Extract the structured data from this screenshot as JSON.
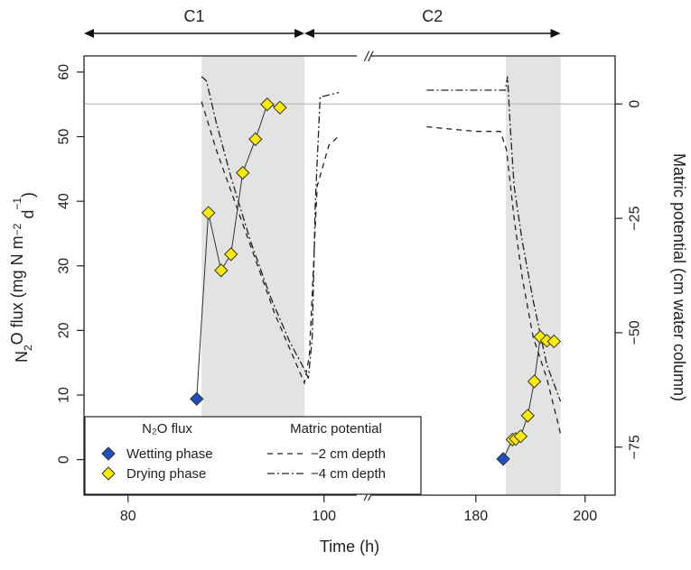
{
  "chart_data": {
    "type": "scatter",
    "xlabel": "Time (h)",
    "ylabel_left_parts": [
      "N",
      "2",
      "O flux (mg N m",
      "−2",
      " d",
      "−1",
      ")"
    ],
    "ylabel_right": "Matric potential (cm water column)",
    "x_break_marker": "//",
    "x_segments": [
      {
        "xlim": [
          75.5,
          101.5
        ],
        "ticks": [
          80,
          100
        ]
      },
      {
        "xlim": [
          161.5,
          205.5
        ],
        "ticks": [
          180,
          200
        ]
      }
    ],
    "x_tick_labels": [
      "80",
      "100",
      "180",
      "200"
    ],
    "y_left": {
      "ylim": [
        -5.5,
        62.5
      ],
      "ticks": [
        0,
        10,
        20,
        30,
        40,
        50,
        60
      ],
      "tick_labels": [
        "0",
        "10",
        "20",
        "30",
        "40",
        "50",
        "60"
      ]
    },
    "y_right": {
      "ylim": [
        -85.5,
        10.5
      ],
      "ticks": [
        0,
        -25,
        -50,
        -75
      ],
      "tick_labels": [
        "0",
        "−25",
        "−50",
        "−75"
      ]
    },
    "reference_line_right": 0,
    "cycles": [
      {
        "label": "C1",
        "x_start": 87.5,
        "x_end": 98
      },
      {
        "label": "C2",
        "x_start": 98,
        "x_end": 195.5
      }
    ],
    "shaded_regions": [
      [
        87.5,
        98
      ],
      [
        185.5,
        195.5
      ]
    ],
    "flux_series": [
      {
        "name": "Wetting phase",
        "color": "#1f4fbf",
        "marker": "diamond",
        "points": [
          [
            87,
            9.4
          ],
          [
            185,
            0.1
          ]
        ]
      },
      {
        "name": "Drying phase",
        "color": "#ffeb00",
        "marker": "diamond",
        "points": [
          [
            88.2,
            38.2
          ],
          [
            89.5,
            29.3
          ],
          [
            90.5,
            31.8
          ],
          [
            91.7,
            44.4
          ],
          [
            93,
            49.6
          ],
          [
            94.2,
            55
          ],
          [
            95.5,
            54.5
          ],
          [
            186.7,
            3.1
          ],
          [
            187.3,
            3.2
          ],
          [
            188.2,
            3.6
          ],
          [
            189.5,
            6.8
          ],
          [
            190.7,
            12.1
          ],
          [
            191.8,
            19
          ],
          [
            193,
            18.4
          ],
          [
            194.3,
            18.3
          ]
        ]
      }
    ],
    "matric_series": [
      {
        "name": "−2 cm depth",
        "dash": "dashed",
        "segment1": [
          [
            87.5,
            0.5
          ],
          [
            88,
            -3
          ],
          [
            89,
            -10
          ],
          [
            91,
            -22
          ],
          [
            93,
            -34
          ],
          [
            95,
            -46
          ],
          [
            97,
            -56
          ],
          [
            98,
            -61
          ],
          [
            98.5,
            -55
          ],
          [
            99.3,
            -18
          ],
          [
            100.5,
            -9
          ],
          [
            101.5,
            -7
          ]
        ],
        "segment2": [
          [
            171,
            -5
          ],
          [
            180,
            -6
          ],
          [
            184.5,
            -6
          ],
          [
            185.6,
            -10
          ],
          [
            187,
            -25
          ],
          [
            188.5,
            -38
          ],
          [
            190.5,
            -51
          ],
          [
            193,
            -60
          ],
          [
            195.5,
            -72
          ]
        ]
      },
      {
        "name": "−4 cm depth",
        "dash": "dashdot",
        "segment1": [
          [
            87.5,
            6
          ],
          [
            88,
            5
          ],
          [
            89,
            -4
          ],
          [
            90.5,
            -16
          ],
          [
            92.5,
            -30
          ],
          [
            94.5,
            -42
          ],
          [
            96.5,
            -52
          ],
          [
            98,
            -58
          ],
          [
            98.4,
            -60
          ],
          [
            98.8,
            -51
          ],
          [
            99.1,
            -22
          ],
          [
            99.6,
            1.5
          ],
          [
            101.5,
            2.5
          ]
        ],
        "segment2": [
          [
            171,
            3
          ],
          [
            178,
            3
          ],
          [
            185.4,
            3
          ],
          [
            185.8,
            6
          ],
          [
            186.3,
            -5
          ],
          [
            187,
            -18
          ],
          [
            188.5,
            -30
          ],
          [
            190.5,
            -43
          ],
          [
            193,
            -57
          ],
          [
            195.5,
            -65
          ]
        ]
      }
    ],
    "legend": {
      "placement": "bottom-left",
      "flux_title": "N₂O flux",
      "matric_title": "Matric potential",
      "flux_entries": [
        "Wetting phase",
        "Drying phase"
      ],
      "matric_entries": [
        "−2 cm depth",
        "−4 cm depth"
      ]
    }
  }
}
